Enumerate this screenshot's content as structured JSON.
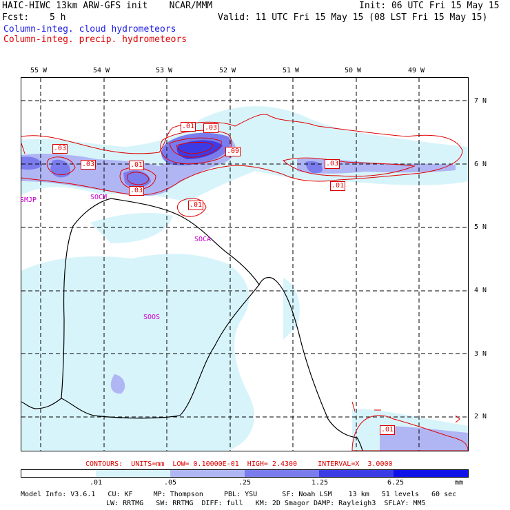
{
  "header": {
    "title_left": "HAIC-HIWC 13km ARW-GFS init    NCAR/MMM",
    "init": "Init: 06 UTC Fri 15 May 15",
    "fcst_label": "Fcst:",
    "fcst_value": "5 h",
    "valid": "Valid: 11 UTC Fri 15 May 15 (08 LST Fri 15 May 15)",
    "legend_blue": "Column-integ. cloud hydrometeors",
    "legend_red": "Column-integ. precip. hydrometeors"
  },
  "colors": {
    "cloud_legend": "#1a1ae6",
    "precip_legend": "#e00000",
    "labels": "#cc00cc",
    "shade_levels": [
      "#ffffff",
      "#d8f4fb",
      "#b0b6f4",
      "#7a7ced",
      "#3c3ce6",
      "#1010e8"
    ]
  },
  "map": {
    "lon_labels": [
      "55 W",
      "54 W",
      "53 W",
      "52 W",
      "51 W",
      "50 W",
      "49 W"
    ],
    "lat_labels": [
      "7 N",
      "6 N",
      "5 N",
      "4 N",
      "3 N",
      "2 N"
    ],
    "place_labels": [
      "SMJP",
      "SOCM",
      "SOCA",
      "SOOS"
    ],
    "contour_labels": [
      ".01",
      ".03",
      ".03",
      ".09",
      ".03",
      ".01",
      ".03",
      ".03",
      ".01",
      ".01",
      ".03",
      ".01"
    ]
  },
  "footer": {
    "contours_line": "CONTOURS:  UNITS=mm  LOW= 0.10000E-01  HIGH= 2.4300     INTERVAL=X  3.0000",
    "colorbar_ticks": [
      ".01",
      ".05",
      ".25",
      "1.25",
      "6.25",
      "mm"
    ],
    "model_info_1": "Model Info: V3.6.1   CU: KF     MP: Thompson     PBL: YSU      SF: Noah LSM    13 km   51 levels   60 sec",
    "model_info_2": "LW: RRTMG   SW: RRTMG  DIFF: full   KM: 2D Smagor DAMP: Rayleigh3  SFLAY: MM5"
  }
}
